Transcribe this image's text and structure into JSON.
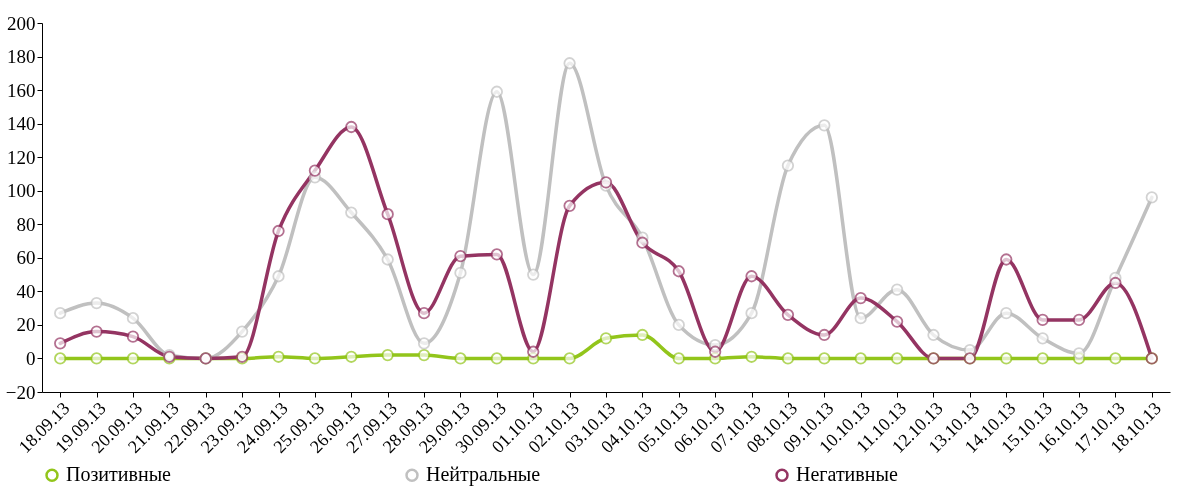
{
  "chart_data": {
    "type": "line",
    "categories": [
      "18.09.13",
      "19.09.13",
      "20.09.13",
      "21.09.13",
      "22.09.13",
      "23.09.13",
      "24.09.13",
      "25.09.13",
      "26.09.13",
      "27.09.13",
      "28.09.13",
      "29.09.13",
      "30.09.13",
      "01.10.13",
      "02.10.13",
      "03.10.13",
      "04.10.13",
      "05.10.13",
      "06.10.13",
      "07.10.13",
      "08.10.13",
      "09.10.13",
      "10.10.13",
      "11.10.13",
      "12.10.13",
      "13.10.13",
      "14.10.13",
      "15.10.13",
      "16.10.13",
      "17.10.13",
      "18.10.13"
    ],
    "series": [
      {
        "name": "Позитивные",
        "color": "#92c51b",
        "values": [
          0,
          0,
          0,
          0,
          0,
          0,
          1,
          0,
          1,
          2,
          2,
          0,
          0,
          0,
          0,
          12,
          14,
          0,
          0,
          1,
          0,
          0,
          0,
          0,
          0,
          0,
          0,
          0,
          0,
          0,
          0
        ]
      },
      {
        "name": "Нейтральные",
        "color": "#c0c0c0",
        "values": [
          27,
          33,
          24,
          2,
          0,
          16,
          49,
          108,
          87,
          59,
          9,
          51,
          159,
          50,
          176,
          103,
          72,
          20,
          8,
          27,
          115,
          139,
          24,
          41,
          14,
          5,
          27,
          12,
          3,
          48,
          96
        ]
      },
      {
        "name": "Негативные",
        "color": "#943462",
        "values": [
          9,
          16,
          13,
          1,
          0,
          1,
          76,
          112,
          138,
          86,
          27,
          61,
          62,
          4,
          91,
          105,
          69,
          52,
          4,
          49,
          26,
          14,
          36,
          22,
          0,
          0,
          59,
          23,
          23,
          45,
          0
        ]
      }
    ],
    "ylim": [
      -20,
      200
    ],
    "yticks": [
      -20,
      0,
      20,
      40,
      60,
      80,
      100,
      120,
      140,
      160,
      180,
      200
    ],
    "grid": false,
    "legend": "bottom",
    "marker": "circle",
    "line_style": "solid"
  }
}
